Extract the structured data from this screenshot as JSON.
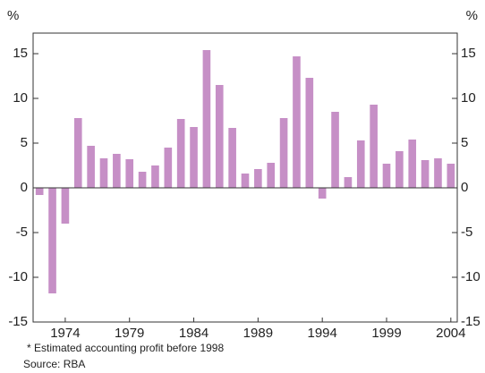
{
  "chart_data": {
    "type": "bar",
    "y_label": "%",
    "y2_label": "%",
    "footnote": "* Estimated accounting profit before 1998",
    "source": "Source: RBA",
    "categories": [
      null,
      null,
      "1974",
      null,
      null,
      null,
      null,
      "1979",
      null,
      null,
      null,
      null,
      "1984",
      null,
      null,
      null,
      null,
      "1989",
      null,
      null,
      null,
      null,
      "1994",
      null,
      null,
      null,
      null,
      "1999",
      null,
      null,
      null,
      null,
      "2004"
    ],
    "values": [
      -0.8,
      -11.8,
      -4,
      7.8,
      4.7,
      3.3,
      3.8,
      3.2,
      1.8,
      2.5,
      4.5,
      7.7,
      6.8,
      15.4,
      11.5,
      6.7,
      1.6,
      2.1,
      2.8,
      7.8,
      14.7,
      12.3,
      -1.2,
      8.5,
      1.2,
      5.3,
      9.3,
      2.7,
      4.1,
      5.4,
      3.1,
      3.3,
      2.7
    ],
    "color": "#c68fc6",
    "ylim": [
      -15,
      17.3
    ],
    "yticks": [
      -15,
      -10,
      -5,
      0,
      5,
      10,
      15
    ],
    "y2lim": [
      -15,
      17.3
    ],
    "y2ticks": [
      -15,
      -10,
      -5,
      0,
      5,
      10,
      15
    ],
    "grid": false
  }
}
